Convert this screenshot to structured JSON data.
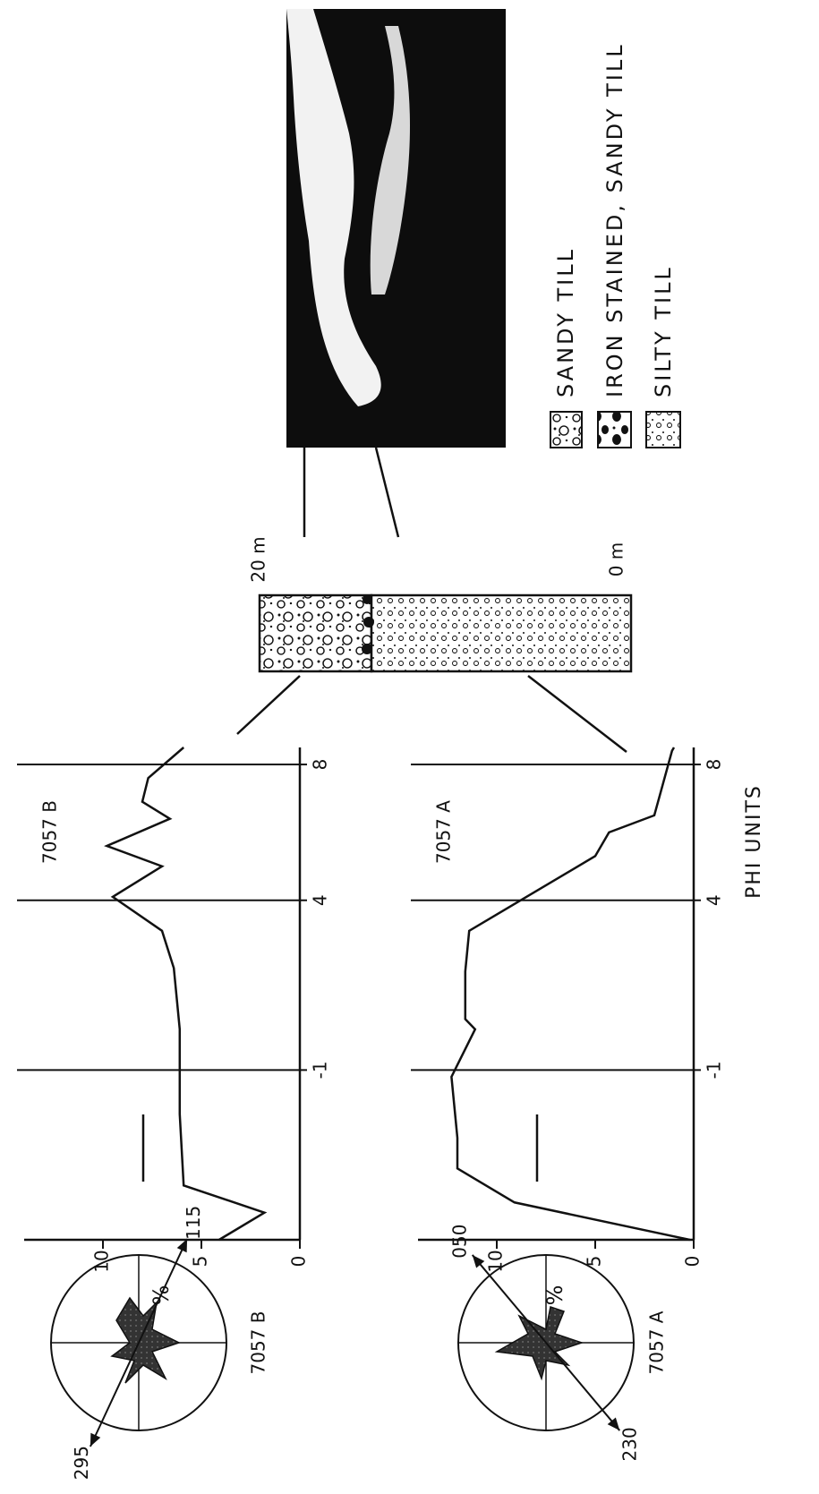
{
  "rose_diagrams": [
    {
      "label": "7057 B",
      "arrows": [
        115,
        295
      ]
    },
    {
      "label": "7057 A",
      "arrows": [
        {
          "value": 50,
          "label": "050"
        },
        230
      ]
    }
  ],
  "chart_data": [
    {
      "type": "line",
      "title": "7057 B",
      "ylabel": "%",
      "color": "#111111",
      "x": [
        -6,
        -5.2,
        -4.4,
        -2.3,
        0.2,
        2.0,
        3.1,
        4.1,
        5.0,
        5.6,
        6.4,
        6.9,
        7.6,
        8.5
      ],
      "values": [
        4.1,
        1.8,
        5.9,
        6.1,
        6.1,
        6.4,
        7.0,
        9.5,
        7.0,
        9.8,
        6.6,
        8.0,
        7.7,
        5.9
      ],
      "xlim": [
        -6,
        8.5
      ],
      "ylim": [
        0,
        14
      ],
      "xticks": [
        -1,
        4,
        8
      ],
      "yticks": [
        0,
        5,
        10
      ]
    },
    {
      "type": "line",
      "title": "7057 A",
      "ylabel": "%",
      "xlabel": "PHI UNITS",
      "color": "#111111",
      "x": [
        -6,
        -4.9,
        -3.9,
        -3.0,
        -1.2,
        0.2,
        0.5,
        1.9,
        3.1,
        5.3,
        6.0,
        6.5,
        8.4,
        8.5
      ],
      "values": [
        0.2,
        9.1,
        12.0,
        12.0,
        12.3,
        11.1,
        11.6,
        11.6,
        11.4,
        5.0,
        4.3,
        2.0,
        1.1,
        1.0
      ],
      "xlim": [
        -6,
        8.5
      ],
      "ylim": [
        0,
        14
      ],
      "xticks": [
        -1,
        4,
        8
      ],
      "yticks": [
        0,
        5,
        10
      ]
    }
  ],
  "column": {
    "top_label": "20 m",
    "bottom_label": "0 m"
  },
  "legend": {
    "items": [
      "SANDY TILL",
      "IRON STAINED, SANDY TILL",
      "SILTY TILL"
    ]
  }
}
